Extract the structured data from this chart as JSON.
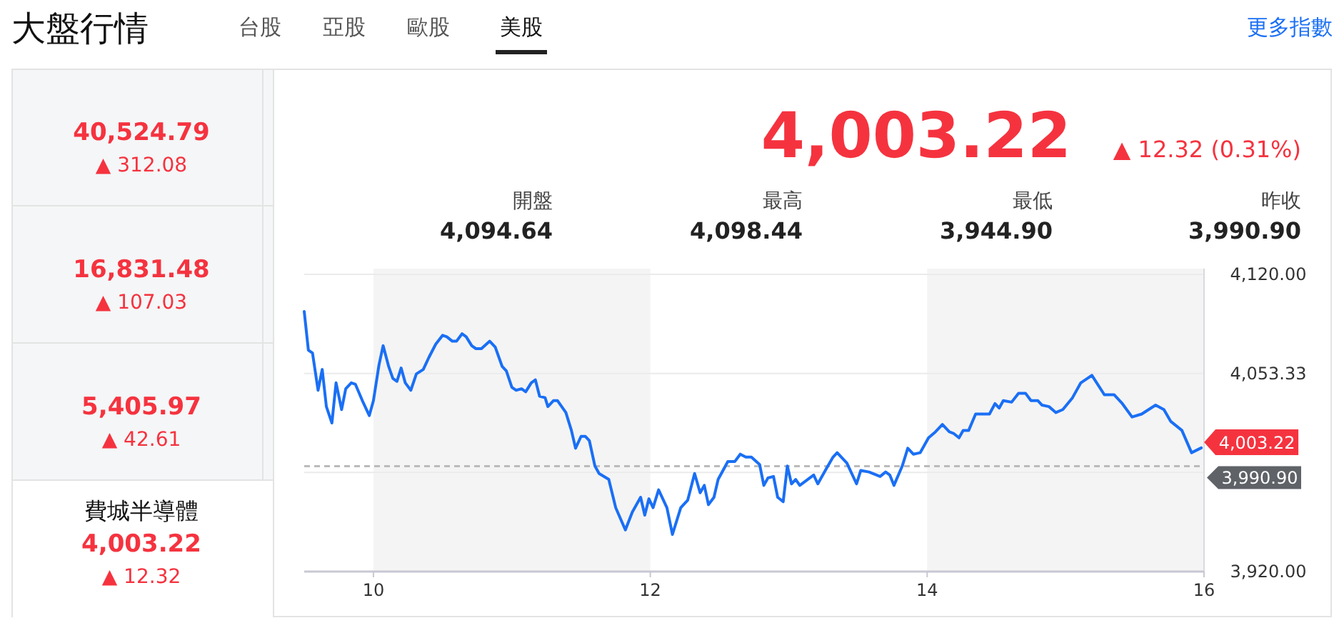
{
  "chart_data": [
    {
      "type": "other",
      "title": "大盤行情",
      "annotations": [
        "台股",
        "亞股",
        "歐股",
        "美股",
        "更多指數",
        "40,524.79",
        "▲ 312.08",
        "16,831.48",
        "▲ 107.03",
        "5,405.97",
        "▲ 42.61",
        "費城半導體",
        "4,003.22",
        "▲ 12.32"
      ]
    },
    {
      "type": "line",
      "title": "4,003.22",
      "subtitle": "▲ 12.32 (0.31%)",
      "annotations": [
        "開盤",
        "4,094.64",
        "最高",
        "4,098.44",
        "最低",
        "3,944.90",
        "昨收",
        "3,990.90",
        {
          "text": "4,003.22",
          "x": 15.98,
          "y": 4003.22
        }
      ],
      "xlim": [
        9.5,
        16
      ],
      "xticks": [
        10,
        12,
        14,
        16
      ],
      "ylim": [
        3920,
        4120
      ],
      "yticks": [
        {
          "value": 4120,
          "label": "4,120.00"
        },
        {
          "value": 4053.33,
          "label": "4,053.33"
        },
        {
          "value": 3986.67,
          "label": null
        },
        {
          "value": 3920,
          "label": "3,920.00"
        }
      ],
      "grid": "y",
      "marker": "none",
      "line_style": "solid",
      "bands": [
        {
          "axis": "x",
          "from": 10,
          "to": 12,
          "color": "#f4f4f4"
        },
        {
          "axis": "x",
          "from": 14,
          "to": 16,
          "color": "#f4f4f4"
        }
      ],
      "ref_lines": [
        {
          "axis": "y",
          "value": 3990.9,
          "label": "3,990.90",
          "color": "#bbbbbb",
          "line_style": "dashed"
        }
      ],
      "series": [
        {
          "color": "#1a6ff5",
          "x": [
            9.5,
            9.53,
            9.56,
            9.6,
            9.63,
            9.66,
            9.7,
            9.73,
            9.77,
            9.8,
            9.84,
            9.87,
            9.92,
            9.97,
            10,
            10.04,
            10.07,
            10.11,
            10.14,
            10.17,
            10.2,
            10.23,
            10.27,
            10.31,
            10.36,
            10.4,
            10.45,
            10.5,
            10.53,
            10.57,
            10.6,
            10.64,
            10.67,
            10.71,
            10.74,
            10.78,
            10.84,
            10.88,
            10.93,
            10.96,
            11,
            11.03,
            11.07,
            11.1,
            11.14,
            11.17,
            11.2,
            11.24,
            11.26,
            11.3,
            11.33,
            11.39,
            11.43,
            11.46,
            11.5,
            11.53,
            11.56,
            11.6,
            11.63,
            11.7,
            11.75,
            11.82,
            11.87,
            11.93,
            11.96,
            11.99,
            12.02,
            12.06,
            12.12,
            12.16,
            12.22,
            12.27,
            12.32,
            12.36,
            12.39,
            12.42,
            12.46,
            12.49,
            12.56,
            12.61,
            12.65,
            12.69,
            12.73,
            12.79,
            12.82,
            12.85,
            12.89,
            12.92,
            12.96,
            12.99,
            13.02,
            13.05,
            13.08,
            13.18,
            13.21,
            13.27,
            13.32,
            13.35,
            13.42,
            13.49,
            13.52,
            13.58,
            13.66,
            13.7,
            13.73,
            13.76,
            13.82,
            13.86,
            13.9,
            13.95,
            14.01,
            14.06,
            14.11,
            14.16,
            14.19,
            14.23,
            14.26,
            14.3,
            14.35,
            14.42,
            14.45,
            14.49,
            14.52,
            14.55,
            14.61,
            14.66,
            14.71,
            14.75,
            14.8,
            14.83,
            14.88,
            14.93,
            14.98,
            15.05,
            15.11,
            15.19,
            15.28,
            15.35,
            15.41,
            15.48,
            15.55,
            15.65,
            15.71,
            15.76,
            15.84,
            15.91,
            15.98
          ],
          "values": [
            4095,
            4069,
            4067,
            4042,
            4056,
            4031,
            4020,
            4047,
            4029,
            4043,
            4047,
            4046,
            4035,
            4025,
            4035,
            4059,
            4072,
            4058,
            4050,
            4048,
            4057,
            4047,
            4042,
            4053,
            4056,
            4064,
            4073,
            4079,
            4078,
            4075,
            4075,
            4080,
            4078,
            4072,
            4070,
            4070,
            4075,
            4071,
            4058,
            4055,
            4044,
            4042,
            4043,
            4041,
            4047,
            4049,
            4038,
            4037,
            4031,
            4035,
            4035,
            4027,
            4015,
            4003,
            4011,
            4011,
            4008,
            3991,
            3986,
            3982,
            3963,
            3948,
            3960,
            3970,
            3958,
            3969,
            3963,
            3975,
            3963,
            3945,
            3963,
            3968,
            3986,
            3973,
            3978,
            3965,
            3970,
            3982,
            3994,
            3994,
            3999,
            3997,
            3997,
            3992,
            3978,
            3983,
            3984,
            3970,
            3967,
            3991,
            3979,
            3982,
            3978,
            3985,
            3979,
            3989,
            3997,
            4000,
            3993,
            3979,
            3988,
            3987,
            3984,
            3987,
            3985,
            3978,
            3991,
            4003,
            3999,
            4000,
            4010,
            4014,
            4019,
            4014,
            4013,
            4010,
            4015,
            4015,
            4026,
            4026,
            4026,
            4033,
            4030,
            4035,
            4034,
            4040,
            4040,
            4035,
            4035,
            4032,
            4031,
            4027,
            4029,
            4037,
            4047,
            4052,
            4039,
            4039,
            4033,
            4024,
            4026,
            4032,
            4029,
            4021,
            4015,
            4000,
            4003.22
          ]
        }
      ]
    }
  ]
}
